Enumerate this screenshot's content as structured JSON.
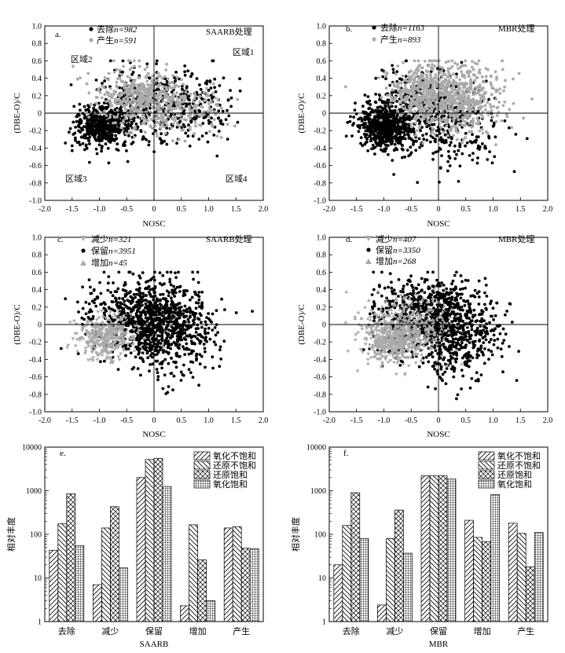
{
  "chart_data": [
    {
      "id": "a",
      "type": "scatter",
      "panel_label": "a.",
      "title": "SAARB处理",
      "xlabel": "NOSC",
      "ylabel": "(DBE-O)/C",
      "xlim": [
        -2.0,
        2.0
      ],
      "ylim": [
        -1.0,
        1.0
      ],
      "xticks": [
        "-2.0",
        "-1.5",
        "-1.0",
        "-0.5",
        "0",
        "0.5",
        "1.0",
        "1.5",
        "2.0"
      ],
      "yticks": [
        "-1.0",
        "-0.8",
        "-0.6",
        "-0.4",
        "-0.2",
        "0",
        "0.2",
        "0.4",
        "0.6",
        "0.8",
        "1.0"
      ],
      "series": [
        {
          "label": "去除",
          "n": "n=982",
          "marker": "circle",
          "color": "#000000",
          "count": 982,
          "clusters": [
            {
              "cx": -1.0,
              "cy": -0.15,
              "sx": 0.22,
              "sy": 0.11,
              "w": 5
            },
            {
              "cx": -0.35,
              "cy": 0.05,
              "sx": 0.35,
              "sy": 0.22,
              "w": 3
            },
            {
              "cx": 0.6,
              "cy": 0.1,
              "sx": 0.4,
              "sy": 0.2,
              "w": 2
            }
          ]
        },
        {
          "label": "产生",
          "n": "n=591",
          "marker": "circle",
          "color": "#aaaaaa",
          "count": 591,
          "clusters": [
            {
              "cx": -0.3,
              "cy": 0.2,
              "sx": 0.35,
              "sy": 0.16,
              "w": 4
            },
            {
              "cx": 0.4,
              "cy": 0.05,
              "sx": 0.45,
              "sy": 0.15,
              "w": 3
            }
          ]
        }
      ],
      "regions": [
        "区域1",
        "区域2",
        "区域3",
        "区域4"
      ]
    },
    {
      "id": "b",
      "type": "scatter",
      "panel_label": "b.",
      "title": "MBR处理",
      "xlabel": "NOSC",
      "ylabel": "(DBE-O)/C",
      "xlim": [
        -2.0,
        2.0
      ],
      "ylim": [
        -1.0,
        1.0
      ],
      "xticks": [
        "-2.0",
        "-1.5",
        "-1.0",
        "-0.5",
        "0",
        "0.5",
        "1.0",
        "1.5",
        "2.0"
      ],
      "yticks": [
        "-1.0",
        "-0.8",
        "-0.6",
        "-0.4",
        "-0.2",
        "0",
        "0.2",
        "0.4",
        "0.6",
        "0.8",
        "1.0"
      ],
      "series": [
        {
          "label": "去除",
          "n": "n=1163",
          "marker": "circle",
          "color": "#000000",
          "count": 1163,
          "clusters": [
            {
              "cx": -1.0,
              "cy": -0.15,
              "sx": 0.22,
              "sy": 0.12,
              "w": 5
            },
            {
              "cx": -0.45,
              "cy": 0.05,
              "sx": 0.35,
              "sy": 0.25,
              "w": 3
            },
            {
              "cx": 0.3,
              "cy": -0.15,
              "sx": 0.4,
              "sy": 0.25,
              "w": 2
            }
          ]
        },
        {
          "label": "产生",
          "n": "n=893",
          "marker": "circle",
          "color": "#aaaaaa",
          "count": 893,
          "clusters": [
            {
              "cx": 0.3,
              "cy": 0.15,
              "sx": 0.45,
              "sy": 0.2,
              "w": 4
            },
            {
              "cx": -0.3,
              "cy": 0.25,
              "sx": 0.3,
              "sy": 0.15,
              "w": 2
            }
          ]
        }
      ]
    },
    {
      "id": "c",
      "type": "scatter",
      "panel_label": "c.",
      "title": "SAARB处理",
      "xlabel": "NOSC",
      "ylabel": "(DBE-O)/C",
      "xlim": [
        -2.0,
        2.0
      ],
      "ylim": [
        -1.0,
        1.0
      ],
      "xticks": [
        "-2.0",
        "-1.5",
        "-1.0",
        "-0.5",
        "0",
        "0.5",
        "1.0",
        "1.5",
        "2.0"
      ],
      "yticks": [
        "-1.0",
        "-0.8",
        "-0.6",
        "-0.4",
        "-0.2",
        "0",
        "0.2",
        "0.4",
        "0.6",
        "0.8",
        "1.0"
      ],
      "series": [
        {
          "label": "减少",
          "n": "n=321",
          "marker": "triangle-down",
          "color": "#aaaaaa",
          "count": 321,
          "clusters": [
            {
              "cx": -0.9,
              "cy": -0.15,
              "sx": 0.25,
              "sy": 0.12,
              "w": 1
            }
          ]
        },
        {
          "label": "保留",
          "n": "n=3951",
          "marker": "circle",
          "color": "#000000",
          "count": 3951,
          "clusters": [
            {
              "cx": -0.3,
              "cy": 0.1,
              "sx": 0.45,
              "sy": 0.22,
              "w": 3
            },
            {
              "cx": 0.3,
              "cy": -0.05,
              "sx": 0.4,
              "sy": 0.25,
              "w": 3
            }
          ]
        },
        {
          "label": "增加",
          "n": "n=45",
          "marker": "triangle-up",
          "color": "#aaaaaa",
          "count": 45,
          "clusters": [
            {
              "cx": -0.7,
              "cy": -0.1,
              "sx": 0.3,
              "sy": 0.1,
              "w": 1
            }
          ]
        }
      ]
    },
    {
      "id": "d",
      "type": "scatter",
      "panel_label": "d.",
      "title": "MBR处理",
      "xlabel": "NOSC",
      "ylabel": "(DBE-O)/C",
      "xlim": [
        -2.0,
        2.0
      ],
      "ylim": [
        -1.0,
        1.0
      ],
      "xticks": [
        "-2.0",
        "-1.5",
        "-1.0",
        "-0.5",
        "0",
        "0.5",
        "1.0",
        "1.5",
        "2.0"
      ],
      "yticks": [
        "-1.0",
        "-0.8",
        "-0.6",
        "-0.4",
        "-0.2",
        "0",
        "0.2",
        "0.4",
        "0.6",
        "0.8",
        "1.0"
      ],
      "series": [
        {
          "label": "减少",
          "n": "n=407",
          "marker": "triangle-down",
          "color": "#aaaaaa",
          "count": 407,
          "clusters": [
            {
              "cx": -0.8,
              "cy": -0.2,
              "sx": 0.3,
              "sy": 0.12,
              "w": 1
            }
          ]
        },
        {
          "label": "保留",
          "n": "n=3350",
          "marker": "circle",
          "color": "#000000",
          "count": 3350,
          "clusters": [
            {
              "cx": -0.3,
              "cy": 0.1,
              "sx": 0.45,
              "sy": 0.22,
              "w": 3
            },
            {
              "cx": 0.3,
              "cy": -0.1,
              "sx": 0.4,
              "sy": 0.25,
              "w": 3
            }
          ]
        },
        {
          "label": "增加",
          "n": "n=268",
          "marker": "triangle-up",
          "color": "#aaaaaa",
          "count": 268,
          "clusters": [
            {
              "cx": -0.6,
              "cy": 0.0,
              "sx": 0.4,
              "sy": 0.15,
              "w": 1
            }
          ]
        }
      ]
    },
    {
      "id": "e",
      "type": "bar",
      "yscale": "log",
      "panel_label": "e.",
      "title": "",
      "xlabel": "SAARB",
      "ylabel": "相对丰度",
      "ylim": [
        1,
        10000
      ],
      "yticks": [
        "1",
        "10",
        "100",
        "1000",
        "10000"
      ],
      "categories": [
        "去除",
        "减少",
        "保留",
        "增加",
        "产生"
      ],
      "series": [
        {
          "name": "氧化不饱和",
          "pattern": "hatch-ne",
          "values": [
            43,
            7,
            2000,
            2.3,
            140
          ]
        },
        {
          "name": "还原不饱和",
          "pattern": "hatch-nw",
          "values": [
            175,
            140,
            5200,
            165,
            150
          ]
        },
        {
          "name": "还原饱和",
          "pattern": "cross-diag",
          "values": [
            850,
            430,
            5500,
            26,
            48
          ]
        },
        {
          "name": "氧化饱和",
          "pattern": "grid",
          "values": [
            55,
            17,
            1250,
            3,
            47
          ]
        }
      ]
    },
    {
      "id": "f",
      "type": "bar",
      "yscale": "log",
      "panel_label": "f.",
      "title": "",
      "xlabel": "MBR",
      "ylabel": "相对丰度",
      "ylim": [
        1,
        10000
      ],
      "yticks": [
        "1",
        "10",
        "100",
        "1000",
        "10000"
      ],
      "categories": [
        "去除",
        "减少",
        "保留",
        "增加",
        "产生"
      ],
      "series": [
        {
          "name": "氧化不饱和",
          "pattern": "hatch-ne",
          "values": [
            20,
            2.4,
            2200,
            210,
            180
          ]
        },
        {
          "name": "还原不饱和",
          "pattern": "hatch-nw",
          "values": [
            160,
            80,
            2200,
            85,
            105
          ]
        },
        {
          "name": "还原饱和",
          "pattern": "cross-diag",
          "values": [
            900,
            360,
            2200,
            68,
            18
          ]
        },
        {
          "name": "氧化饱和",
          "pattern": "grid",
          "values": [
            80,
            37,
            1850,
            820,
            110
          ]
        }
      ]
    }
  ]
}
